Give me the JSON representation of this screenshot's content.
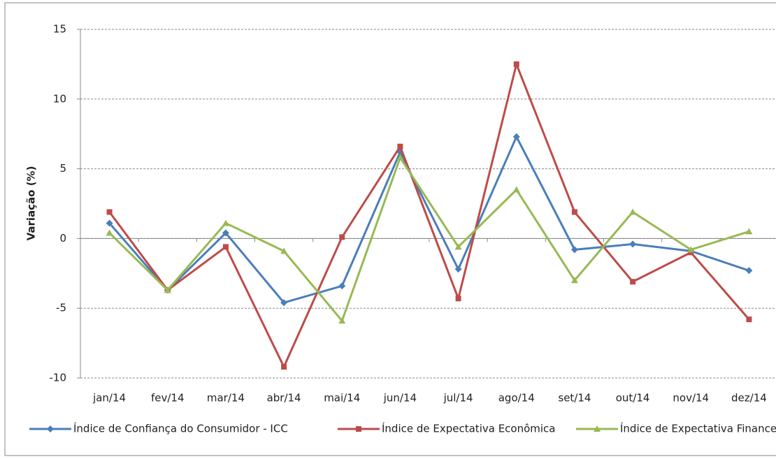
{
  "chart_data": {
    "type": "line",
    "y_label": "Variação (%)",
    "categories": [
      "jan/14",
      "fev/14",
      "mar/14",
      "abr/14",
      "mai/14",
      "jun/14",
      "jul/14",
      "ago/14",
      "set/14",
      "out/14",
      "nov/14",
      "dez/14"
    ],
    "series": [
      {
        "name": "Índice de Confiança do Consumidor - ICC",
        "color": "#4a7ebb",
        "marker": "diamond",
        "values": [
          1.1,
          -3.7,
          0.4,
          -4.6,
          -3.4,
          6.2,
          -2.2,
          7.3,
          -0.8,
          -0.4,
          -0.9,
          -2.3
        ]
      },
      {
        "name": "Índice de Expectativa Econômica",
        "color": "#be4b48",
        "marker": "square",
        "values": [
          1.9,
          -3.7,
          -0.6,
          -9.2,
          0.1,
          6.6,
          -4.3,
          12.5,
          1.9,
          -3.1,
          -1.0,
          -5.8
        ]
      },
      {
        "name": "Índice de Expectativa Financeira",
        "color": "#98b954",
        "marker": "triangle",
        "values": [
          0.4,
          -3.7,
          1.1,
          -0.9,
          -5.9,
          5.8,
          -0.6,
          3.5,
          -3.0,
          1.9,
          -0.8,
          0.5
        ]
      }
    ],
    "ylim": [
      -10,
      15
    ],
    "yticks": [
      -10,
      -5,
      0,
      5,
      10,
      15
    ],
    "grid": true,
    "legend": "bottom"
  }
}
